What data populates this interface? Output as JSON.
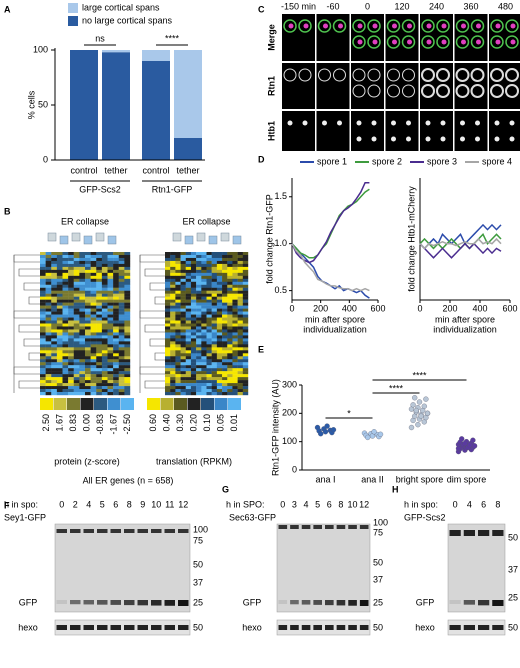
{
  "panel_labels": [
    "A",
    "B",
    "C",
    "D",
    "E",
    "F",
    "G",
    "H"
  ],
  "chart_data": [
    {
      "type": "stacked-bar",
      "ylabel": "% cells",
      "categories": [
        "control",
        "tether",
        "control",
        "tether"
      ],
      "groups": [
        "GFP-Scs2",
        "Rtn1-GFP"
      ],
      "series": [
        {
          "name": "large cortical spans",
          "color": "#a9c8ea",
          "values": [
            0,
            2,
            10,
            80
          ]
        },
        {
          "name": "no large cortical spans",
          "color": "#2a5ba0",
          "values": [
            100,
            98,
            90,
            20
          ]
        }
      ],
      "ylim": [
        0,
        100
      ],
      "yticks": [
        0,
        50,
        100
      ],
      "annotations": [
        "ns",
        "****"
      ],
      "legend": "top"
    },
    {
      "type": "line",
      "ylabel": "fold change Rtn1-GFP",
      "ylabel_color": "#4a9e2a",
      "xlabel": [
        "min after spore",
        "individualization"
      ],
      "x": [
        0,
        30,
        60,
        90,
        120,
        150,
        180,
        210,
        240,
        270,
        300,
        330,
        360,
        390,
        420,
        450,
        480,
        510,
        540
      ],
      "series": [
        {
          "name": "spore 1",
          "color": "#2b4bab",
          "values": [
            1.0,
            0.95,
            0.9,
            0.85,
            0.8,
            0.75,
            0.65,
            0.6,
            0.58,
            0.55,
            0.52,
            0.55,
            0.5,
            0.52,
            0.5,
            0.48,
            0.5,
            0.45,
            0.42
          ]
        },
        {
          "name": "spore 2",
          "color": "#3e9b3e",
          "values": [
            1.0,
            0.95,
            0.9,
            0.88,
            0.85,
            0.85,
            0.88,
            0.95,
            1.0,
            1.1,
            1.2,
            1.3,
            1.35,
            1.4,
            1.42,
            1.45,
            1.5,
            1.55,
            1.58
          ]
        },
        {
          "name": "spore 3",
          "color": "#4a2c8f",
          "values": [
            1.0,
            0.9,
            0.85,
            0.82,
            0.8,
            0.82,
            0.88,
            0.95,
            1.02,
            1.12,
            1.2,
            1.28,
            1.35,
            1.38,
            1.42,
            1.48,
            1.55,
            1.65,
            1.65
          ]
        },
        {
          "name": "spore 4",
          "color": "#a6a6a6",
          "values": [
            1.0,
            0.92,
            0.88,
            0.8,
            0.75,
            0.7,
            0.62,
            0.6,
            0.57,
            0.55,
            0.55,
            0.53,
            0.52,
            0.52,
            0.5,
            0.52,
            0.5,
            0.52,
            0.5
          ]
        }
      ],
      "xlim": [
        0,
        600
      ],
      "xticks": [
        0,
        200,
        400,
        600
      ],
      "ylim": [
        0.4,
        1.7
      ],
      "yticks": [
        {
          "value": 0.5,
          "label": "0.5"
        },
        {
          "value": 1,
          "label": "1.0"
        },
        {
          "value": 1.5,
          "label": "1.5"
        }
      ],
      "legend": "top"
    },
    {
      "type": "line",
      "ylabel": "fold change Htb1-mCherry",
      "ylabel_color": "#c0189a",
      "xlabel": [
        "min after spore",
        "individualization"
      ],
      "x": [
        0,
        30,
        60,
        90,
        120,
        150,
        180,
        210,
        240,
        270,
        300,
        330,
        360,
        390,
        420,
        450,
        480,
        510,
        540
      ],
      "series": [
        {
          "color": "#2b4bab",
          "values": [
            1.0,
            0.95,
            1.0,
            1.05,
            1.0,
            1.1,
            1.05,
            1.0,
            1.05,
            1.1,
            1.0,
            1.05,
            1.1,
            1.15,
            1.2,
            1.15,
            1.2,
            1.15,
            1.2
          ]
        },
        {
          "color": "#3e9b3e",
          "values": [
            1.0,
            1.05,
            1.0,
            0.95,
            1.0,
            0.95,
            1.0,
            1.05,
            1.0,
            0.95,
            1.0,
            0.95,
            1.0,
            1.05,
            1.1,
            1.0,
            1.05,
            1.1,
            1.05
          ]
        },
        {
          "color": "#4a2c8f",
          "values": [
            1.0,
            0.95,
            0.9,
            0.85,
            0.9,
            0.95,
            0.9,
            0.85,
            0.9,
            0.95,
            1.0,
            0.95,
            1.0,
            0.95,
            0.9,
            0.95,
            0.9,
            0.95,
            0.92
          ]
        },
        {
          "color": "#a6a6a6",
          "values": [
            1.0,
            0.95,
            1.0,
            0.98,
            1.0,
            1.02,
            1.0,
            1.0,
            0.98,
            1.0,
            1.02,
            1.0,
            1.0,
            1.05,
            1.0,
            1.02,
            1.0,
            1.05,
            1.0
          ]
        }
      ],
      "xlim": [
        0,
        600
      ],
      "xticks": [
        0,
        200,
        400,
        600
      ],
      "ylim": [
        0.4,
        1.7
      ]
    },
    {
      "type": "strip",
      "ylabel": "Rtn1-GFP intensity (AU)",
      "ylabel_color": "#4a9e2a",
      "categories": [
        "ana I",
        "ana II",
        "bright spore",
        "dim spore"
      ],
      "colors": [
        "#2b5ba8",
        "#a9c8ea",
        "#b8c6d6",
        "#5a3aa0"
      ],
      "values": [
        [
          150,
          145,
          140,
          138,
          135,
          132,
          128,
          155,
          142
        ],
        [
          130,
          128,
          125,
          122,
          120,
          118,
          115,
          135,
          126
        ],
        [
          150,
          160,
          170,
          175,
          180,
          185,
          190,
          195,
          200,
          205,
          210,
          215,
          220,
          225,
          230,
          240,
          250,
          255,
          190,
          200,
          210
        ],
        [
          65,
          70,
          72,
          75,
          78,
          80,
          82,
          84,
          85,
          86,
          88,
          90,
          92,
          95,
          98,
          100,
          105,
          110,
          80,
          85,
          90,
          88,
          76,
          94
        ]
      ],
      "ylim": [
        0,
        300
      ],
      "yticks": [
        0,
        100,
        200,
        300
      ],
      "annotations": [
        "*",
        "****",
        "****"
      ]
    }
  ],
  "heatmaps": {
    "panels": [
      {
        "header": "ER collapse",
        "scale_title": "protein (z-score)",
        "scale_labels": [
          "2.50",
          "1.67",
          "0.83",
          "0.00",
          "-0.83",
          "-1.67",
          "-2.50"
        ]
      },
      {
        "header": "ER collapse",
        "scale_title": "translation (RPKM)",
        "scale_labels": [
          "0.60",
          "0.40",
          "0.30",
          "0.20",
          "0.10",
          "0.05",
          "0.01"
        ]
      }
    ],
    "caption": "All ER genes (n = 658)"
  },
  "micrographs": {
    "times": [
      "-150 min",
      "-60",
      "0",
      "120",
      "240",
      "360",
      "480"
    ],
    "rows": [
      {
        "label": "Merge",
        "color": "#000000"
      },
      {
        "label": "Rtn1",
        "color": "#3a9a2a"
      },
      {
        "label": "Htb1",
        "color": "#c0189a"
      }
    ]
  },
  "blots": [
    {
      "time_label": "h in spo:",
      "times": [
        "0",
        "2",
        "4",
        "5",
        "6",
        "8",
        "9",
        "10",
        "11",
        "12"
      ],
      "protein": "Sey1-GFP",
      "markers": [
        "100",
        "75",
        "50",
        "37",
        "25"
      ],
      "bands": [
        "GFP",
        "hexo"
      ],
      "hexo_marker": "50"
    },
    {
      "time_label": "h in SPO:",
      "times": [
        "0",
        "3",
        "4",
        "5",
        "6",
        "8",
        "10",
        "12"
      ],
      "protein": "Sec63-GFP",
      "markers": [
        "100",
        "75",
        "50",
        "37",
        "25"
      ],
      "bands": [
        "GFP",
        "hexo"
      ],
      "hexo_marker": "50"
    },
    {
      "time_label": "h in spo:",
      "times": [
        "0",
        "4",
        "6",
        "8"
      ],
      "protein": "GFP-Scs2",
      "markers": [
        "50",
        "37",
        "25"
      ],
      "bands": [
        "GFP",
        "hexo"
      ],
      "hexo_marker": "50"
    }
  ]
}
